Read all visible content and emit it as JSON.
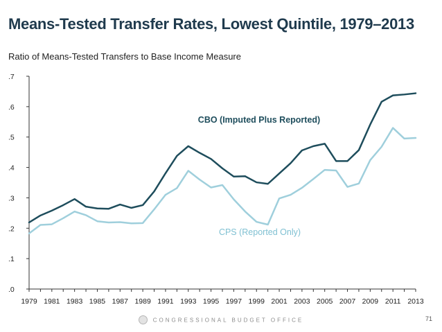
{
  "title": "Means-Tested Transfer Rates, Lowest Quintile, 1979–2013",
  "subtitle": "Ratio of Means-Tested Transfers to Base Income Measure",
  "footer": "CONGRESSIONAL BUDGET OFFICE",
  "page_number": "71",
  "chart_data": {
    "type": "line",
    "title": "Means-Tested Transfer Rates, Lowest Quintile, 1979–2013",
    "ylabel": "Ratio of Means-Tested Transfers to Base Income Measure",
    "xlabel": "",
    "x": [
      1979,
      1980,
      1981,
      1982,
      1983,
      1984,
      1985,
      1986,
      1987,
      1988,
      1989,
      1990,
      1991,
      1992,
      1993,
      1994,
      1995,
      1996,
      1997,
      1998,
      1999,
      2000,
      2001,
      2002,
      2003,
      2004,
      2005,
      2006,
      2007,
      2008,
      2009,
      2010,
      2011,
      2012,
      2013
    ],
    "x_tick_labels": [
      "1979",
      "1981",
      "1983",
      "1985",
      "1987",
      "1989",
      "1991",
      "1993",
      "1995",
      "1997",
      "1999",
      "2001",
      "2003",
      "2005",
      "2007",
      "2009",
      "2011",
      "2013"
    ],
    "xlim": [
      1979,
      2013
    ],
    "ylim": [
      0,
      0.7
    ],
    "y_ticks": [
      0,
      0.1,
      0.2,
      0.3,
      0.4,
      0.5,
      0.6,
      0.7
    ],
    "y_tick_labels": [
      ".0",
      ".1",
      ".2",
      ".3",
      ".4",
      ".5",
      ".6",
      ".7"
    ],
    "series": [
      {
        "name": "CBO (Imputed Plus Reported)",
        "color": "#1e4d5c",
        "values": [
          0.219,
          0.242,
          0.258,
          0.276,
          0.296,
          0.271,
          0.265,
          0.264,
          0.278,
          0.267,
          0.276,
          0.321,
          0.381,
          0.438,
          0.47,
          0.448,
          0.428,
          0.397,
          0.37,
          0.371,
          0.351,
          0.346,
          0.38,
          0.414,
          0.456,
          0.47,
          0.478,
          0.421,
          0.421,
          0.457,
          0.541,
          0.616,
          0.637,
          0.64,
          0.644
        ]
      },
      {
        "name": "CPS (Reported Only)",
        "color": "#9fcfdc",
        "values": [
          0.183,
          0.211,
          0.213,
          0.233,
          0.255,
          0.243,
          0.223,
          0.219,
          0.22,
          0.216,
          0.217,
          0.262,
          0.31,
          0.332,
          0.389,
          0.36,
          0.334,
          0.342,
          0.295,
          0.255,
          0.221,
          0.212,
          0.298,
          0.31,
          0.333,
          0.362,
          0.392,
          0.39,
          0.336,
          0.347,
          0.424,
          0.468,
          0.53,
          0.495,
          0.497
        ]
      }
    ]
  }
}
